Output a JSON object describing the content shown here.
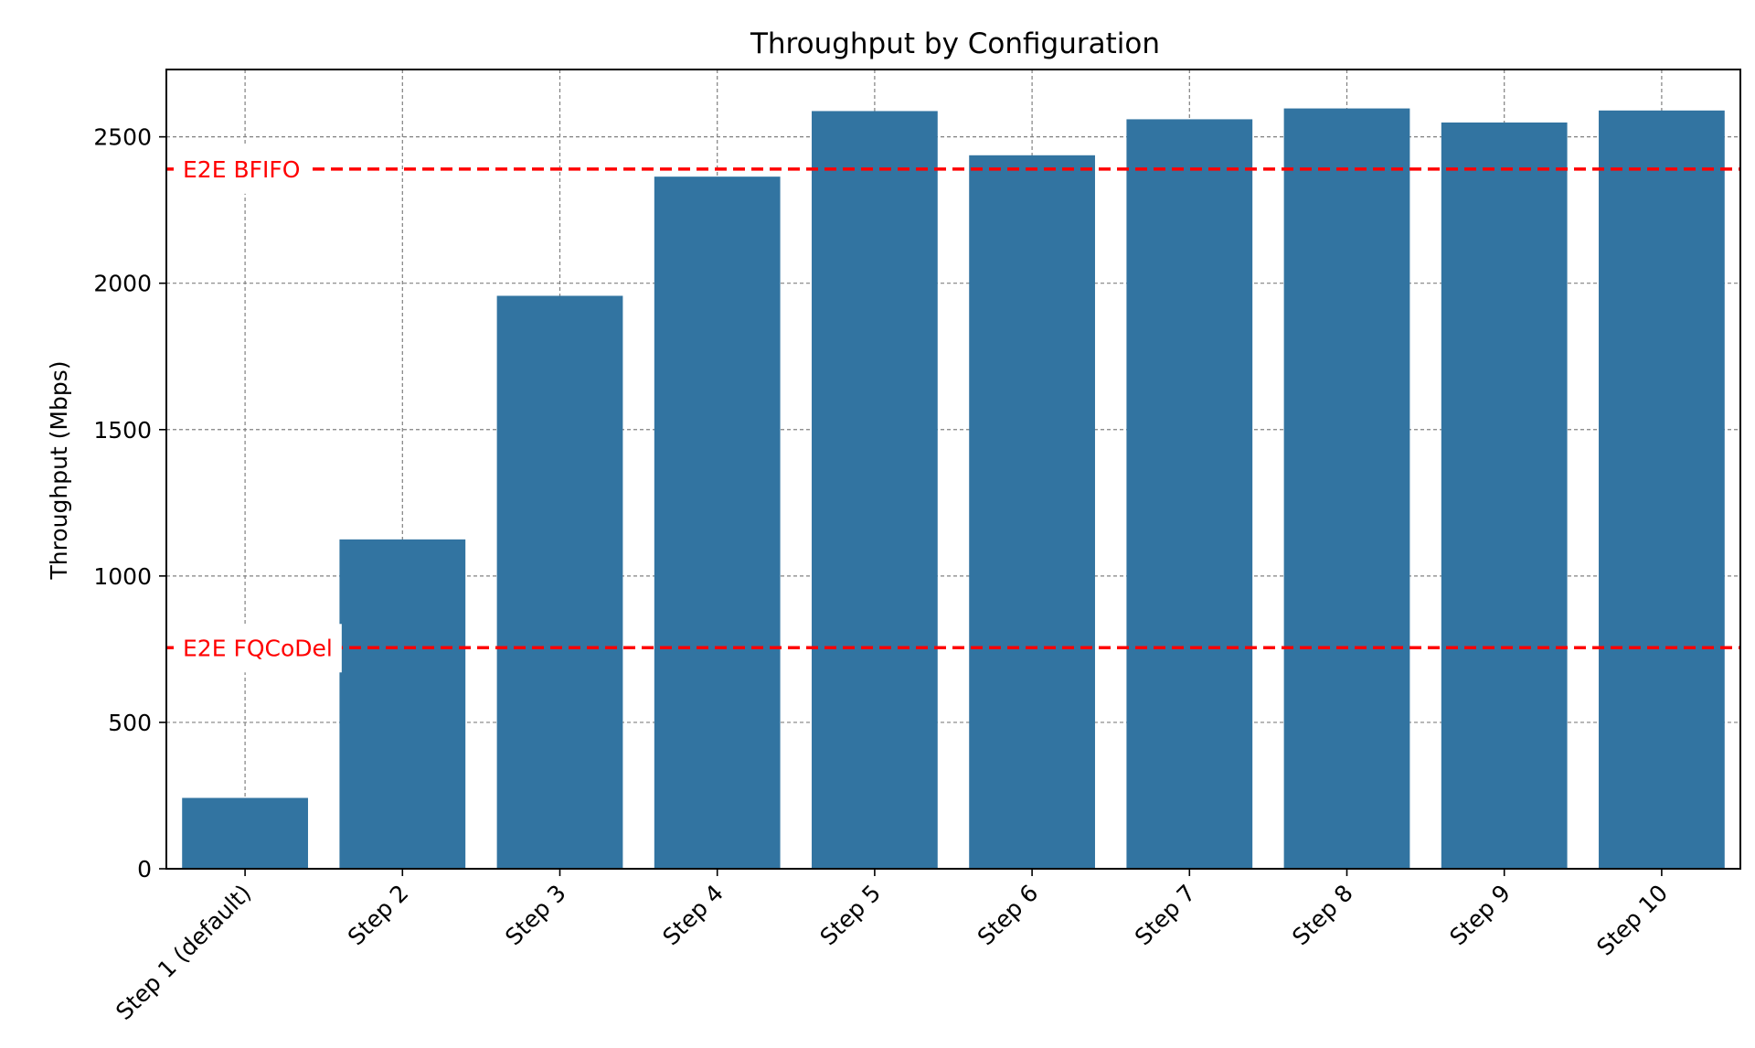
{
  "chart_data": {
    "type": "bar",
    "title": "Throughput by Configuration",
    "xlabel": "",
    "ylabel": "Throughput (Mbps)",
    "categories": [
      "Step 1 (default)",
      "Step 2",
      "Step 3",
      "Step 4",
      "Step 5",
      "Step 6",
      "Step 7",
      "Step 8",
      "Step 9",
      "Step 10"
    ],
    "values": [
      242,
      1125,
      1957,
      2364,
      2588,
      2437,
      2560,
      2597,
      2549,
      2590
    ],
    "ylim": [
      0,
      2730
    ],
    "yticks": [
      0,
      500,
      1000,
      1500,
      2000,
      2500
    ],
    "grid": true,
    "bar_color": "#3274a1",
    "reference_lines": [
      {
        "label": "E2E BFIFO",
        "value": 2390,
        "color": "#ff0000",
        "style": "dashed"
      },
      {
        "label": "E2E FQCoDel",
        "value": 755,
        "color": "#ff0000",
        "style": "dashed"
      }
    ]
  }
}
